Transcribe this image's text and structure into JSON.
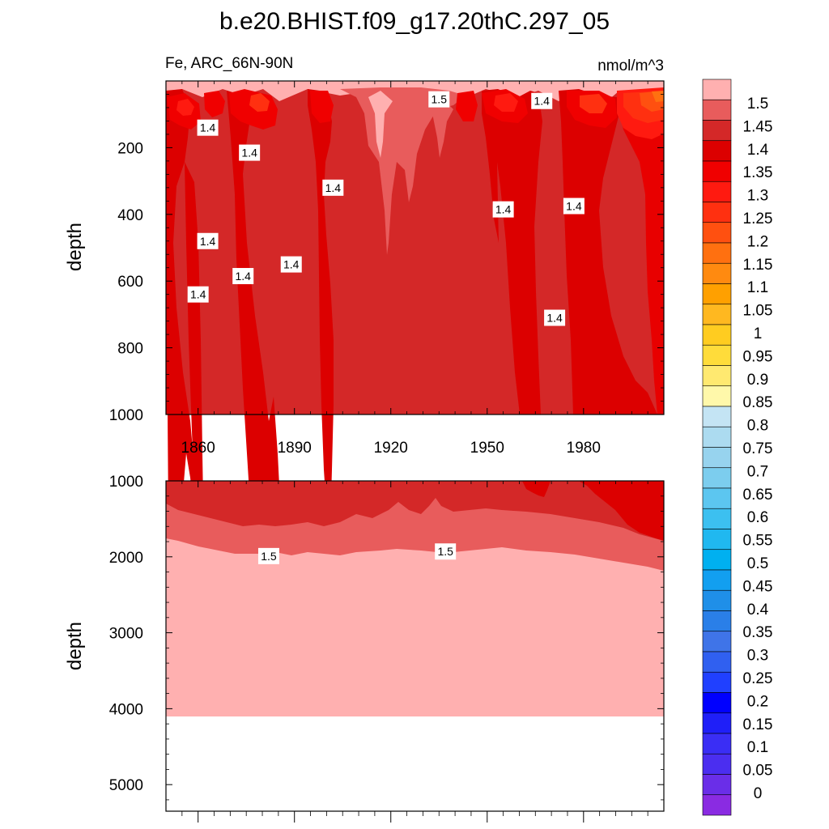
{
  "title": "b.e20.BHIST.f09_g17.20thC.297_05",
  "colors": {
    "levels": [
      "#8a2be2",
      "#6a2ee8",
      "#4b2ef0",
      "#3a2ef5",
      "#1f1ff8",
      "#0000ff",
      "#2040ff",
      "#3060f0",
      "#3f74e8",
      "#2a7fe8",
      "#1f8fe8",
      "#129ff0",
      "#00b0f0",
      "#20b8f0",
      "#3cc0f0",
      "#5cc6f0",
      "#7ccdee",
      "#97d3ee",
      "#acdbf0",
      "#c4e4f4",
      "#fff8aa",
      "#ffe970",
      "#ffdc3a",
      "#ffcc20",
      "#ffb820",
      "#ffa000",
      "#ff8a10",
      "#ff7010",
      "#ff5010",
      "#ff3010",
      "#ff1a10",
      "#f00000",
      "#dc0000",
      "#d42828",
      "#e85c5c",
      "#ffb0b0"
    ]
  },
  "chart_data": [
    {
      "type": "heatmap",
      "title": "b.e20.BHIST.f09_g17.20thC.297_05",
      "subtitle_left": "Fe, ARC_66N-90N",
      "subtitle_right": "nmol/m^3",
      "xlabel": "",
      "ylabel": "depth",
      "xlim": [
        1850,
        2005
      ],
      "ylim": [
        1000,
        0
      ],
      "x_ticks": [
        1860,
        1890,
        1920,
        1950,
        1980
      ],
      "x_tick_labels": [
        "1860",
        "1890",
        "1920",
        "1950",
        "1980"
      ],
      "y_ticks": [
        200,
        400,
        600,
        800,
        1000
      ],
      "y_tick_labels": [
        "200",
        "400",
        "600",
        "800",
        "1000"
      ],
      "contour_labels": [
        {
          "text": "1.4",
          "year": 1863,
          "depth": 140
        },
        {
          "text": "1.5",
          "year": 1935,
          "depth": 55
        },
        {
          "text": "1.4",
          "year": 1967,
          "depth": 60
        },
        {
          "text": "1.4",
          "year": 1902,
          "depth": 320
        },
        {
          "text": "1.4",
          "year": 1955,
          "depth": 385
        },
        {
          "text": "1.4",
          "year": 1876,
          "depth": 215
        },
        {
          "text": "1.4",
          "year": 1860,
          "depth": 640
        },
        {
          "text": "1.4",
          "year": 1863,
          "depth": 480
        },
        {
          "text": "1.4",
          "year": 1874,
          "depth": 585
        },
        {
          "text": "1.4",
          "year": 1889,
          "depth": 550
        },
        {
          "text": "1.4",
          "year": 1971,
          "depth": 710
        },
        {
          "text": "1.4",
          "year": 1977,
          "depth": 375
        }
      ]
    },
    {
      "type": "heatmap",
      "xlabel": "",
      "ylabel": "depth",
      "xlim": [
        1850,
        2005
      ],
      "ylim": [
        5350,
        1000
      ],
      "y_ticks": [
        1000,
        2000,
        3000,
        4000,
        5000
      ],
      "y_tick_labels": [
        "1000",
        "2000",
        "3000",
        "4000",
        "5000"
      ],
      "no_data_below_depth": 4120,
      "contour_labels": [
        {
          "text": "1.5",
          "year": 1882,
          "depth": 1990
        },
        {
          "text": "1.5",
          "year": 1937,
          "depth": 1930
        }
      ]
    }
  ],
  "colorbar": {
    "labels": [
      "1.5",
      "1.45",
      "1.4",
      "1.35",
      "1.3",
      "1.25",
      "1.2",
      "1.15",
      "1.1",
      "1.05",
      "1",
      "0.95",
      "0.9",
      "0.85",
      "0.8",
      "0.75",
      "0.7",
      "0.65",
      "0.6",
      "0.55",
      "0.5",
      "0.45",
      "0.4",
      "0.35",
      "0.3",
      "0.25",
      "0.2",
      "0.15",
      "0.1",
      "0.05",
      "0"
    ]
  }
}
